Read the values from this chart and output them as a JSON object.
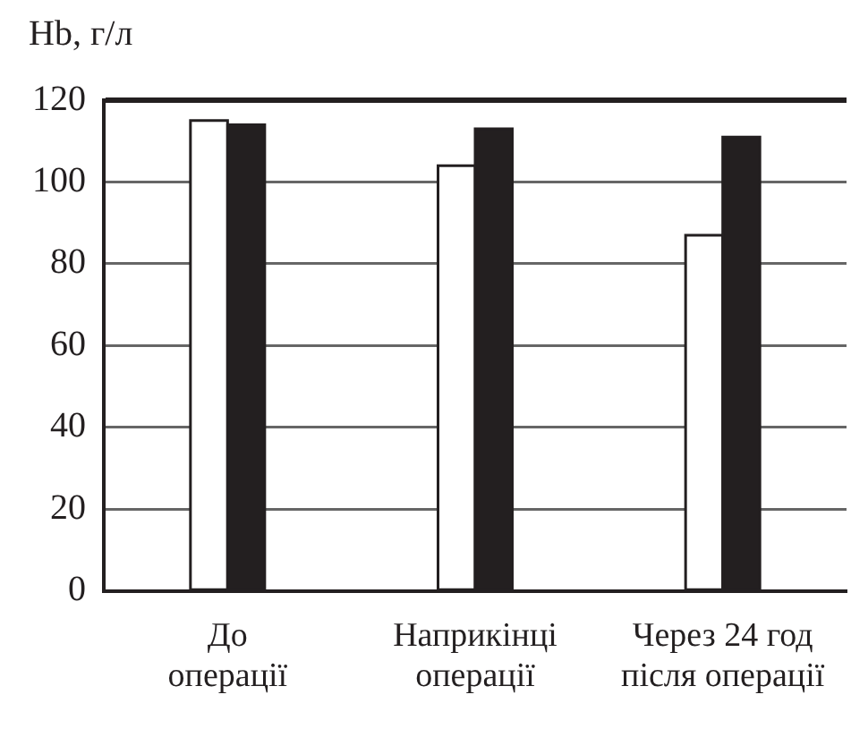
{
  "chart_data": {
    "type": "bar",
    "ylabel": "Hb, г/л",
    "categories": [
      "До\nоперації",
      "Наприкінці\nоперації",
      "Через 24 год\nпісля операції"
    ],
    "series": [
      {
        "color": "#ffffff",
        "values": [
          115,
          104,
          87
        ]
      },
      {
        "color": "#231f20",
        "values": [
          114,
          113,
          111
        ]
      }
    ],
    "ylim": [
      0,
      120
    ],
    "yticks": [
      0,
      20,
      40,
      60,
      80,
      100,
      120
    ],
    "grid": "y",
    "legend": false
  }
}
